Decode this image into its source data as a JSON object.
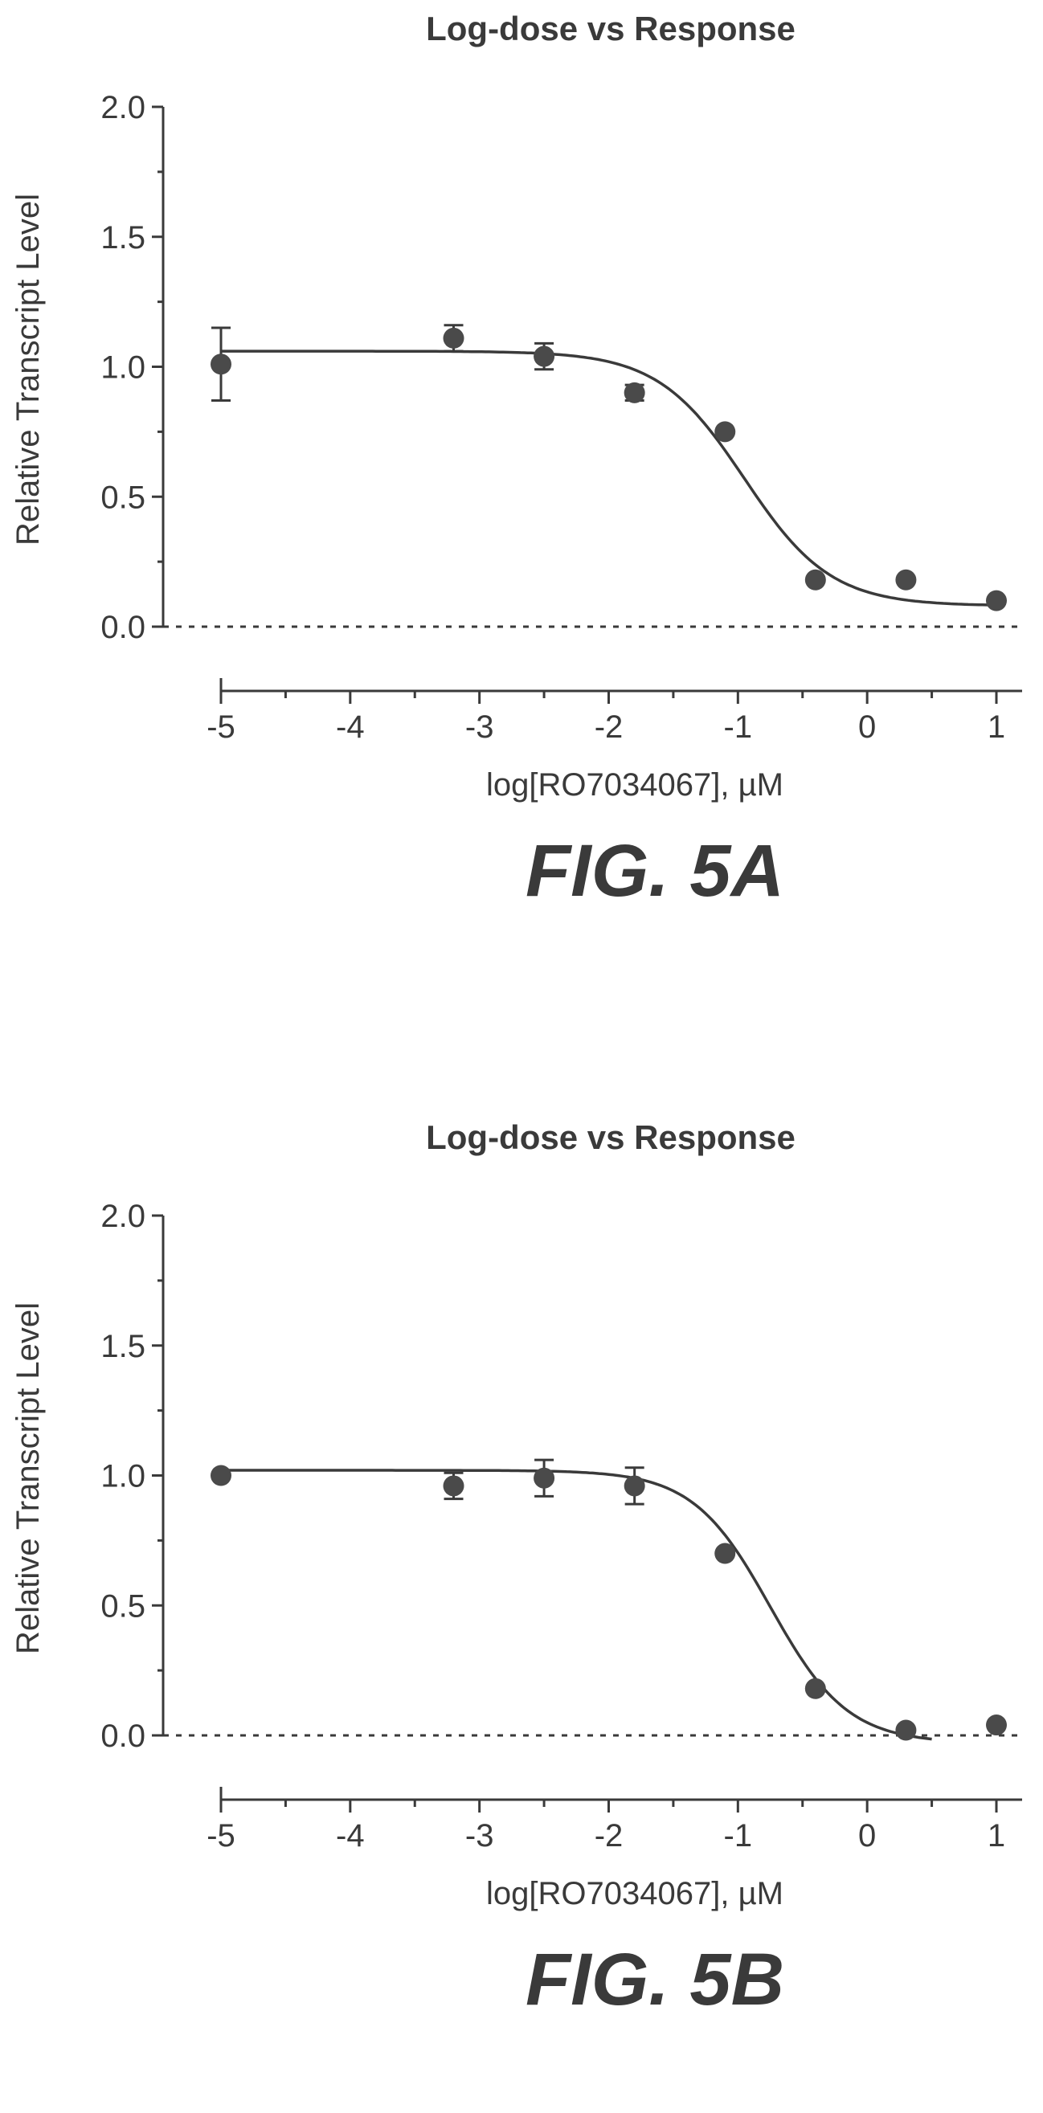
{
  "figures": [
    {
      "caption": "FIG. 5A",
      "chart_data": {
        "type": "scatter",
        "title": "Log-dose vs Response",
        "xlabel": "log[RO7034067], µM",
        "ylabel": "Relative Transcript Level",
        "xlim": [
          -5,
          1
        ],
        "ylim": [
          0,
          2.0
        ],
        "x_ticks": [
          -5,
          -4,
          -3,
          -2,
          -1,
          0,
          1
        ],
        "y_ticks": [
          0.0,
          0.5,
          1.0,
          1.5,
          2.0
        ],
        "x_tick_labels": [
          "-5",
          "-4",
          "-3",
          "-2",
          "-1",
          "0",
          "1"
        ],
        "y_tick_labels": [
          "0.0",
          "0.5",
          "1.0",
          "1.5",
          "2.0"
        ],
        "reference_line": {
          "y": 0,
          "style": "dotted"
        },
        "points": [
          {
            "x": -5.0,
            "y": 1.01,
            "err": 0.14
          },
          {
            "x": -3.2,
            "y": 1.11,
            "err": 0.05
          },
          {
            "x": -2.5,
            "y": 1.04,
            "err": 0.05
          },
          {
            "x": -1.8,
            "y": 0.9,
            "err": 0.03
          },
          {
            "x": -1.1,
            "y": 0.75,
            "err": 0.0
          },
          {
            "x": -0.4,
            "y": 0.18,
            "err": 0.0
          },
          {
            "x": 0.3,
            "y": 0.18,
            "err": 0.0
          },
          {
            "x": 1.0,
            "y": 0.1,
            "err": 0.0
          }
        ],
        "fit": {
          "model": "sigmoid",
          "top": 1.06,
          "bottom": 0.08,
          "log_ic50": -0.95,
          "hill": 1.3,
          "x_range": [
            -5,
            1
          ]
        }
      }
    },
    {
      "caption": "FIG. 5B",
      "chart_data": {
        "type": "scatter",
        "title": "Log-dose vs Response",
        "xlabel": "log[RO7034067], µM",
        "ylabel": "Relative Transcript Level",
        "xlim": [
          -5,
          1
        ],
        "ylim": [
          0,
          2.0
        ],
        "x_ticks": [
          -5,
          -4,
          -3,
          -2,
          -1,
          0,
          1
        ],
        "y_ticks": [
          0.0,
          0.5,
          1.0,
          1.5,
          2.0
        ],
        "x_tick_labels": [
          "-5",
          "-4",
          "-3",
          "-2",
          "-1",
          "0",
          "1"
        ],
        "y_tick_labels": [
          "0.0",
          "0.5",
          "1.0",
          "1.5",
          "2.0"
        ],
        "reference_line": {
          "y": 0,
          "style": "dotted"
        },
        "points": [
          {
            "x": -5.0,
            "y": 1.0,
            "err": 0.0
          },
          {
            "x": -3.2,
            "y": 0.96,
            "err": 0.05
          },
          {
            "x": -2.5,
            "y": 0.99,
            "err": 0.07
          },
          {
            "x": -1.8,
            "y": 0.96,
            "err": 0.07
          },
          {
            "x": -1.1,
            "y": 0.7,
            "err": 0.0
          },
          {
            "x": -0.4,
            "y": 0.18,
            "err": 0.0
          },
          {
            "x": 0.3,
            "y": 0.02,
            "err": 0.0
          },
          {
            "x": 1.0,
            "y": 0.04,
            "err": 0.0
          }
        ],
        "fit": {
          "model": "sigmoid",
          "top": 1.02,
          "bottom": -0.03,
          "log_ic50": -0.75,
          "hill": 1.45,
          "x_range": [
            -5,
            0.5
          ]
        }
      }
    }
  ]
}
